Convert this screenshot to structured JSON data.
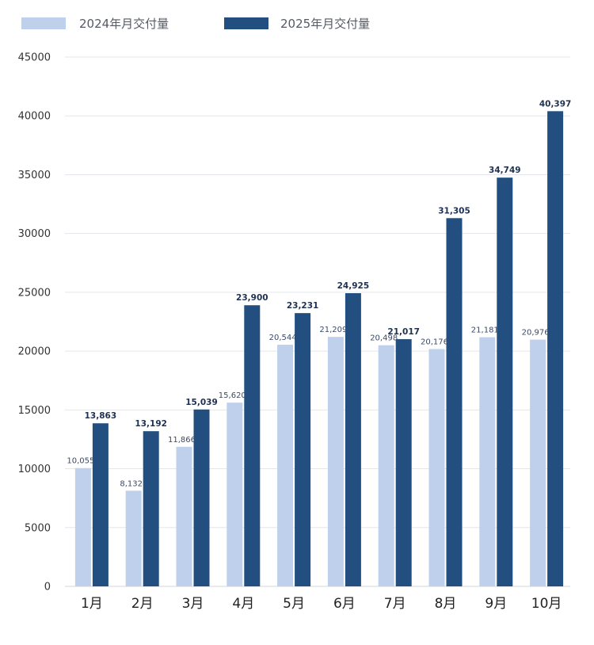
{
  "chart_data": {
    "type": "bar",
    "title": "",
    "xlabel": "",
    "ylabel": "",
    "categories": [
      "1月",
      "2月",
      "3月",
      "4月",
      "5月",
      "6月",
      "7月",
      "8月",
      "9月",
      "10月"
    ],
    "series": [
      {
        "name": "2024年月交付量",
        "color": "#bed0eb",
        "values": [
          10055,
          8132,
          11866,
          15620,
          20544,
          21209,
          20498,
          20176,
          21181,
          20976
        ],
        "labels": [
          "10,055",
          "8,132",
          "11,866",
          "15,620",
          "20,544",
          "21,209",
          "20,498",
          "20,176",
          "21,181",
          "20,976"
        ]
      },
      {
        "name": "2025年月交付量",
        "color": "#224f7f",
        "values": [
          13863,
          13192,
          15039,
          23900,
          23231,
          24925,
          21017,
          31305,
          34749,
          40397
        ],
        "labels": [
          "13,863",
          "13,192",
          "15,039",
          "23,900",
          "23,231",
          "24,925",
          "21,017",
          "31,305",
          "34,749",
          "40,397"
        ]
      }
    ],
    "ylim": [
      0,
      45000
    ],
    "yticks": [
      0,
      5000,
      10000,
      15000,
      20000,
      25000,
      30000,
      35000,
      40000,
      45000
    ],
    "ytick_labels": [
      "0",
      "5000",
      "10000",
      "15000",
      "20000",
      "25000",
      "30000",
      "35000",
      "40000",
      "45000"
    ],
    "grid": true,
    "legend_position": "top-left"
  }
}
